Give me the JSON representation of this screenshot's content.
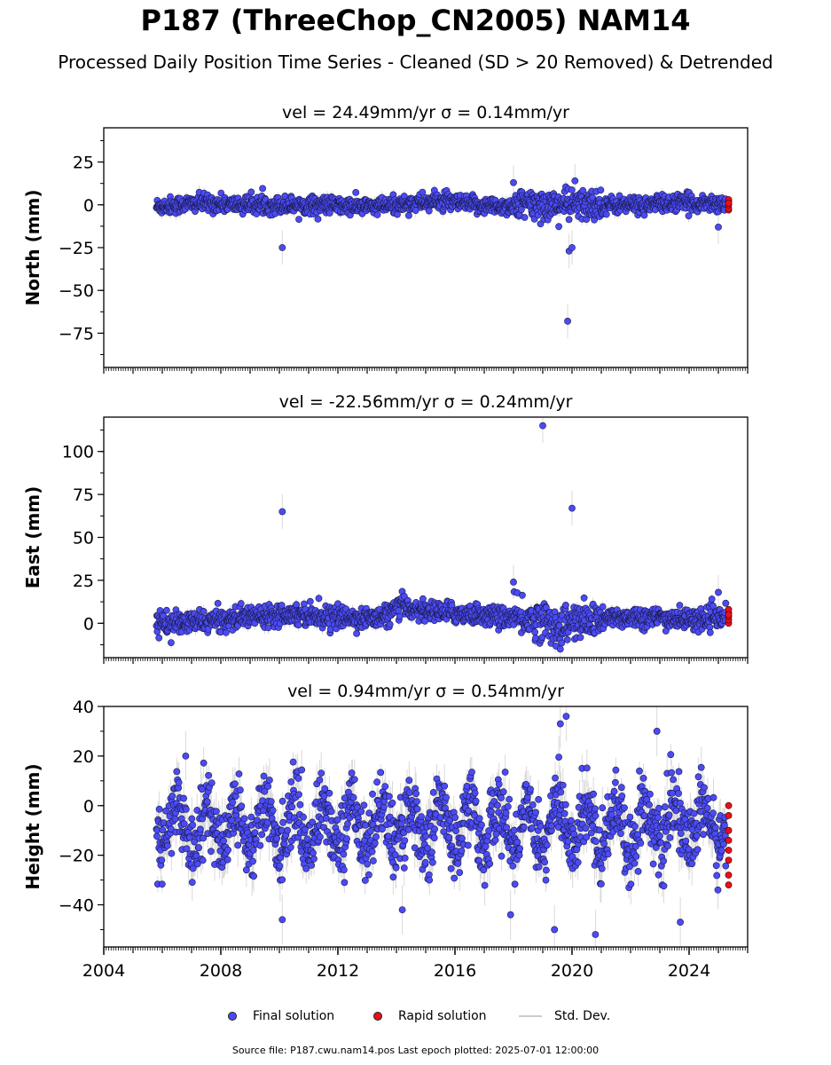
{
  "title": "P187 (ThreeChop_CN2005) NAM14",
  "subtitle": "Processed Daily Position Time Series - Cleaned (SD > 20 Removed) & Detrended",
  "footer": "Source file: P187.cwu.nam14.pos  Last epoch plotted: 2025-07-01 12:00:00",
  "legend": {
    "final": "Final solution",
    "rapid": "Rapid solution",
    "sd": "Std. Dev."
  },
  "colors": {
    "final": "#4b4bf5",
    "rapid": "#e8101a",
    "sd": "#bbbbbb"
  },
  "chart_data": [
    {
      "type": "scatter",
      "title": "vel = 24.49mm/yr   σ = 0.14mm/yr",
      "ylabel": "North (mm)",
      "xlim": [
        2004,
        2026
      ],
      "ylim": [
        -95,
        45
      ],
      "yticks": [
        25,
        0,
        -25,
        -50,
        -75
      ],
      "show_xtick_labels": false,
      "base": [
        [
          2005.8,
          -1
        ],
        [
          2006.5,
          0
        ],
        [
          2007.5,
          1
        ],
        [
          2008.5,
          0
        ],
        [
          2009.5,
          0
        ],
        [
          2010.5,
          0
        ],
        [
          2011.5,
          0
        ],
        [
          2012.5,
          -1
        ],
        [
          2013.5,
          -1
        ],
        [
          2014.5,
          1
        ],
        [
          2015.5,
          2
        ],
        [
          2016.5,
          0
        ],
        [
          2017.5,
          -1
        ],
        [
          2018.5,
          0
        ],
        [
          2019.5,
          0
        ],
        [
          2020.5,
          0
        ],
        [
          2021.5,
          0
        ],
        [
          2022.5,
          0
        ],
        [
          2023.5,
          1
        ],
        [
          2024.5,
          1
        ],
        [
          2025.3,
          1
        ]
      ],
      "spread": 2.5,
      "outliers": [
        [
          2010.1,
          -25
        ],
        [
          2018.0,
          13
        ],
        [
          2019.9,
          -27
        ],
        [
          2019.85,
          -68
        ],
        [
          2020.0,
          -25
        ],
        [
          2020.1,
          14
        ],
        [
          2025.0,
          -13
        ]
      ],
      "rapid_values": [
        -3,
        -2,
        0,
        2,
        3,
        1
      ]
    },
    {
      "type": "scatter",
      "title": "vel = -22.56mm/yr   σ = 0.24mm/yr",
      "ylabel": "East (mm)",
      "xlim": [
        2004,
        2026
      ],
      "ylim": [
        -20,
        120
      ],
      "yticks": [
        100,
        75,
        50,
        25,
        0
      ],
      "show_xtick_labels": false,
      "base": [
        [
          2005.8,
          0
        ],
        [
          2006.5,
          0
        ],
        [
          2007.5,
          1
        ],
        [
          2008.5,
          3
        ],
        [
          2009.5,
          5
        ],
        [
          2010.5,
          6
        ],
        [
          2011.5,
          4
        ],
        [
          2012.5,
          3
        ],
        [
          2013.5,
          3
        ],
        [
          2014.2,
          10
        ],
        [
          2015.0,
          7
        ],
        [
          2016.0,
          6
        ],
        [
          2017.0,
          5
        ],
        [
          2018.0,
          3
        ],
        [
          2019.0,
          2
        ],
        [
          2019.5,
          -2
        ],
        [
          2020.0,
          0
        ],
        [
          2021.0,
          2
        ],
        [
          2022.0,
          4
        ],
        [
          2023.0,
          3
        ],
        [
          2024.0,
          2
        ],
        [
          2025.3,
          3
        ]
      ],
      "spread": 3,
      "outliers": [
        [
          2010.1,
          65
        ],
        [
          2018.0,
          24
        ],
        [
          2019.0,
          115
        ],
        [
          2020.0,
          67
        ],
        [
          2025.0,
          18
        ],
        [
          2019.6,
          -15
        ]
      ],
      "rapid_values": [
        0,
        2,
        4,
        6,
        8,
        5
      ]
    },
    {
      "type": "scatter",
      "title": "vel = 0.94mm/yr   σ = 0.54mm/yr",
      "ylabel": "Height (mm)",
      "xlim": [
        2004,
        2026
      ],
      "ylim": [
        -57,
        40
      ],
      "yticks": [
        40,
        20,
        0,
        -20,
        -40
      ],
      "xticks": [
        2004,
        2008,
        2012,
        2016,
        2020,
        2024
      ],
      "show_xtick_labels": true,
      "seasonal": {
        "mean": -8,
        "amplitude": 9,
        "noise": 7
      },
      "base": [
        [
          2005.8,
          -8
        ],
        [
          2010.0,
          -12
        ],
        [
          2014.0,
          -6
        ],
        [
          2018.0,
          -8
        ],
        [
          2022.0,
          -7
        ],
        [
          2025.3,
          -10
        ]
      ],
      "spread": 7,
      "outliers": [
        [
          2010.1,
          -46
        ],
        [
          2014.2,
          -42
        ],
        [
          2019.4,
          -50
        ],
        [
          2020.8,
          -52
        ],
        [
          2017.9,
          -44
        ],
        [
          2019.8,
          36
        ],
        [
          2019.6,
          33
        ],
        [
          2022.9,
          30
        ],
        [
          2006.8,
          20
        ],
        [
          2023.7,
          -47
        ]
      ],
      "rapid_values": [
        -32,
        -28,
        -22,
        -18,
        -14,
        -10,
        -4,
        0
      ]
    }
  ]
}
